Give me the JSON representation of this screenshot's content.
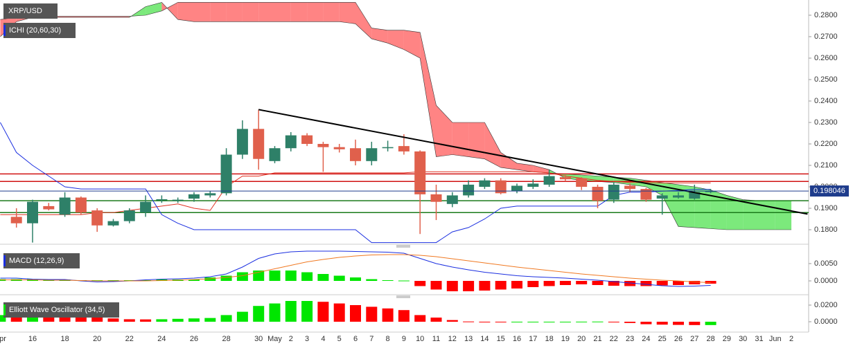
{
  "chart_data": [
    {
      "type": "candlestick",
      "title": "XRP/USD",
      "indicator": "ICHI (20,60,30)",
      "categories": [
        "Apr",
        null,
        "16",
        null,
        "18",
        null,
        "20",
        null,
        "22",
        null,
        "24",
        null,
        "26",
        null,
        "28",
        null,
        "30",
        "May",
        "2",
        "3",
        "4",
        "5",
        "6",
        "7",
        "8",
        "9",
        "10",
        "11",
        "12",
        "13",
        "14",
        "15",
        "16",
        "17",
        "18",
        "19",
        "20",
        "21",
        "22",
        "23",
        "24",
        "25",
        "26",
        "27",
        "28",
        "29",
        "30",
        "31",
        "Jun",
        "2"
      ],
      "open": [
        null,
        0.186,
        0.183,
        0.191,
        0.187,
        0.195,
        0.189,
        0.182,
        0.184,
        0.188,
        0.194,
        0.1935,
        0.1945,
        0.196,
        0.197,
        0.215,
        0.227,
        0.212,
        0.218,
        0.224,
        0.22,
        0.2185,
        0.218,
        0.212,
        0.218,
        0.219,
        0.2165,
        0.1965,
        0.192,
        0.196,
        0.2,
        0.203,
        0.198,
        0.2,
        0.201,
        0.2045,
        0.204,
        0.2,
        0.194,
        0.2005,
        0.199,
        0.1945,
        0.195,
        0.1945,
        0.1978,
        null,
        null,
        null,
        null,
        null
      ],
      "high": [
        null,
        0.19,
        0.194,
        0.1925,
        0.1975,
        0.1955,
        0.19,
        0.185,
        0.19,
        0.196,
        0.196,
        0.195,
        0.1975,
        0.198,
        0.218,
        0.231,
        0.236,
        0.219,
        0.2255,
        0.225,
        0.221,
        0.22,
        0.222,
        0.221,
        0.2215,
        0.2245,
        0.217,
        0.201,
        0.1975,
        0.203,
        0.204,
        0.204,
        0.2015,
        0.2035,
        0.208,
        0.2055,
        0.2045,
        0.201,
        0.202,
        0.2015,
        0.1995,
        0.197,
        0.1975,
        0.201,
        0.199,
        null,
        null,
        null,
        null,
        null
      ],
      "low": [
        null,
        0.181,
        0.174,
        0.189,
        0.186,
        0.187,
        0.179,
        0.1815,
        0.183,
        0.186,
        0.1925,
        0.1925,
        0.193,
        0.195,
        0.196,
        0.213,
        0.208,
        0.211,
        0.2165,
        0.219,
        0.207,
        0.216,
        0.21,
        0.21,
        0.2165,
        0.215,
        0.178,
        0.1845,
        0.1905,
        0.195,
        0.199,
        0.1965,
        0.197,
        0.199,
        0.2,
        0.2025,
        0.1985,
        0.19,
        0.1925,
        0.1975,
        0.193,
        0.187,
        0.1945,
        0.194,
        0.197,
        null,
        null,
        null,
        null,
        null
      ],
      "close": [
        null,
        0.183,
        0.193,
        0.1895,
        0.195,
        0.188,
        0.182,
        0.184,
        0.189,
        0.193,
        0.1942,
        0.194,
        0.1965,
        0.197,
        0.215,
        0.227,
        0.213,
        0.218,
        0.224,
        0.22,
        0.2185,
        0.2175,
        0.212,
        0.218,
        0.2185,
        0.2165,
        0.1965,
        0.193,
        0.196,
        0.201,
        0.203,
        0.197,
        0.2005,
        0.2015,
        0.205,
        0.2035,
        0.2,
        0.1935,
        0.201,
        0.199,
        0.194,
        0.196,
        0.196,
        0.1975,
        0.198,
        null,
        null,
        null,
        null,
        null
      ],
      "up_color": "#2e8068",
      "down_color": "#e0604c",
      "lines": [
        {
          "color": "#e03020",
          "values": [
            0.187,
            0.187,
            0.187,
            0.187,
            0.187,
            0.187,
            0.188,
            0.188,
            0.189,
            0.19,
            0.191,
            0.192,
            0.19,
            0.189,
            0.2,
            0.205,
            0.205,
            0.2065,
            0.2065,
            0.2065,
            0.2065,
            0.2065,
            0.2065,
            0.2065,
            0.2065,
            0.2065,
            0.207,
            0.207,
            0.207,
            0.207,
            0.207,
            0.207,
            0.207,
            0.207,
            0.2065,
            0.205,
            0.204,
            0.203,
            0.2025,
            0.202,
            0.202,
            0.2018,
            0.2018,
            0.2018,
            0.2018,
            null,
            null,
            null,
            null,
            null
          ]
        },
        {
          "color": "#1a2ee0",
          "values": [
            0.23,
            0.216,
            0.21,
            0.205,
            0.2,
            0.199,
            0.199,
            0.199,
            0.199,
            0.199,
            0.187,
            0.183,
            0.18,
            0.18,
            0.18,
            0.18,
            0.18,
            0.18,
            0.18,
            0.18,
            0.18,
            0.18,
            0.18,
            0.174,
            0.174,
            0.174,
            0.174,
            0.174,
            0.179,
            0.181,
            0.185,
            0.19,
            0.191,
            0.191,
            0.191,
            0.191,
            0.191,
            0.191,
            0.196,
            0.1975,
            0.1975,
            0.198,
            0.1983,
            0.1988,
            0.1988,
            null,
            null,
            null,
            null,
            null
          ]
        }
      ],
      "cloud": [
        {
          "color": "#44e044",
          "values": [
            0.27,
            0.277,
            0.279,
            0.279,
            0.279,
            0.279,
            0.279,
            0.279,
            0.279,
            0.284,
            0.286,
            0.278,
            0.277,
            0.277,
            0.277,
            0.277,
            0.277,
            0.277,
            0.277,
            0.277,
            0.277,
            0.277,
            0.276,
            0.269,
            0.267,
            0.264,
            0.26,
            0.214,
            0.215,
            0.214,
            0.213,
            0.209,
            0.208,
            0.207,
            0.2065,
            0.206,
            0.2055,
            0.205,
            0.2045,
            0.204,
            0.203,
            0.202,
            0.201,
            0.2,
            0.1985,
            0.196,
            0.194,
            0.1935,
            0.1935,
            0.1935
          ]
        },
        {
          "color": "#ff5050",
          "values": [
            0.278,
            0.279,
            0.2795,
            0.2795,
            0.2795,
            0.2795,
            0.2795,
            0.2795,
            0.2795,
            0.28,
            0.282,
            0.286,
            0.286,
            0.286,
            0.286,
            0.286,
            0.286,
            0.286,
            0.286,
            0.286,
            0.286,
            0.286,
            0.286,
            0.274,
            0.273,
            0.273,
            0.272,
            0.238,
            0.23,
            0.23,
            0.23,
            0.216,
            0.211,
            0.21,
            0.208,
            0.204,
            0.203,
            0.2025,
            0.202,
            0.201,
            0.2,
            0.196,
            0.1815,
            0.181,
            0.1805,
            0.18,
            0.18,
            0.18,
            0.18,
            0.18
          ]
        }
      ],
      "levels": [
        {
          "value": 0.206,
          "color": "#d01010"
        },
        {
          "value": 0.2025,
          "color": "#d01010"
        },
        {
          "value": 0.1935,
          "color": "#1a7a1a"
        },
        {
          "value": 0.188,
          "color": "#1a7a1a"
        }
      ],
      "trendline": {
        "x": [
          16,
          50
        ],
        "values": [
          0.236,
          0.1873
        ],
        "color": "#000000"
      },
      "last_price": 0.198046,
      "last_color": "#1e3c8c",
      "ylim": [
        0.1742,
        0.2871
      ],
      "yticks": [
        {
          "value": 0.18,
          "label": "0.1800"
        },
        {
          "value": 0.19,
          "label": "0.1900"
        },
        {
          "value": 0.2,
          "label": "0.2000"
        },
        {
          "value": 0.21,
          "label": "0.2100"
        },
        {
          "value": 0.22,
          "label": "0.2200"
        },
        {
          "value": 0.23,
          "label": "0.2300"
        },
        {
          "value": 0.24,
          "label": "0.2400"
        },
        {
          "value": 0.25,
          "label": "0.2500"
        },
        {
          "value": 0.26,
          "label": "0.2600"
        },
        {
          "value": 0.27,
          "label": "0.2700"
        },
        {
          "value": 0.28,
          "label": "0.2800"
        }
      ]
    },
    {
      "type": "macd",
      "title": "MACD (12,26,9)",
      "histogram": [
        0.0005,
        0.0005,
        0.0005,
        0.0004,
        0.0004,
        0.0002,
        0.0002,
        0.0002,
        0.0002,
        0.0002,
        0.0004,
        0.0004,
        0.0004,
        0.001,
        0.0015,
        0.0025,
        0.003,
        0.003,
        0.003,
        0.0025,
        0.002,
        0.0015,
        0.001,
        0.0005,
        0.0002,
        0.0001,
        -0.0015,
        -0.0025,
        -0.003,
        -0.003,
        -0.0028,
        -0.0025,
        -0.0022,
        -0.0018,
        -0.0015,
        -0.0012,
        -0.001,
        -0.0012,
        -0.0014,
        -0.0015,
        -0.0015,
        -0.0013,
        -0.0012,
        -0.001,
        -0.0008
      ],
      "up_color": "#00e600",
      "down_color": "#ff0000",
      "series": [
        {
          "color": "#1a2ee0",
          "values": [
            0.0008,
            0.0008,
            0.0005,
            0.0004,
            0.0004,
            0.0,
            -0.0003,
            -0.0002,
            0.0,
            0.0003,
            0.0005,
            0.0006,
            0.0008,
            0.0012,
            0.002,
            0.004,
            0.0065,
            0.0078,
            0.0084,
            0.0086,
            0.0086,
            0.0086,
            0.0085,
            0.0084,
            0.0083,
            0.008,
            0.0065,
            0.005,
            0.004,
            0.0032,
            0.0025,
            0.002,
            0.0015,
            0.0012,
            0.001,
            0.0008,
            0.0005,
            0.0002,
            -0.0002,
            -0.0006,
            -0.001,
            -0.0014,
            -0.0016,
            -0.0015,
            -0.0013
          ]
        },
        {
          "color": "#f07820",
          "values": [
            0.0003,
            0.0003,
            0.0003,
            0.0002,
            0.0002,
            0.0001,
            0.0,
            0.0,
            0.0,
            0.0,
            0.0001,
            0.0002,
            0.0004,
            0.0006,
            0.001,
            0.0015,
            0.0025,
            0.0035,
            0.0045,
            0.0055,
            0.0062,
            0.0068,
            0.0072,
            0.0075,
            0.0076,
            0.0076,
            0.0074,
            0.007,
            0.0064,
            0.0058,
            0.0052,
            0.0046,
            0.004,
            0.0035,
            0.003,
            0.0025,
            0.002,
            0.0016,
            0.0012,
            0.0008,
            0.0005,
            0.0002,
            0.0,
            -0.0003,
            -0.0005
          ]
        }
      ],
      "ylim": [
        -0.0028,
        0.0088
      ],
      "yticks": [
        {
          "value": 0,
          "label": "0.0000"
        },
        {
          "value": 0.005,
          "label": "0.0050"
        }
      ]
    },
    {
      "type": "oscillator",
      "title": "Elliott Wave Oscillator (34,5)",
      "histogram": [
        0.008,
        0.0075,
        0.0085,
        0.008,
        0.0078,
        0.007,
        0.0055,
        0.004,
        0.003,
        0.0028,
        0.003,
        0.0035,
        0.004,
        0.0045,
        0.008,
        0.012,
        0.019,
        0.022,
        0.025,
        0.025,
        0.024,
        0.022,
        0.02,
        0.018,
        0.016,
        0.014,
        0.008,
        0.005,
        0.002,
        0.0003,
        0.0,
        -0.0005,
        -0.0005,
        -0.0003,
        -0.0002,
        -0.0001,
        0.0001,
        0.0002,
        -0.0005,
        -0.0015,
        -0.003,
        -0.0035,
        -0.0038,
        -0.004,
        -0.004
      ],
      "up_color": "#00e600",
      "down_color": "#ff0000",
      "ylim": [
        -0.0108,
        0.0275
      ],
      "yticks": [
        {
          "value": 0,
          "label": "0.0000"
        },
        {
          "value": 0.02,
          "label": "0.0200"
        }
      ]
    }
  ]
}
